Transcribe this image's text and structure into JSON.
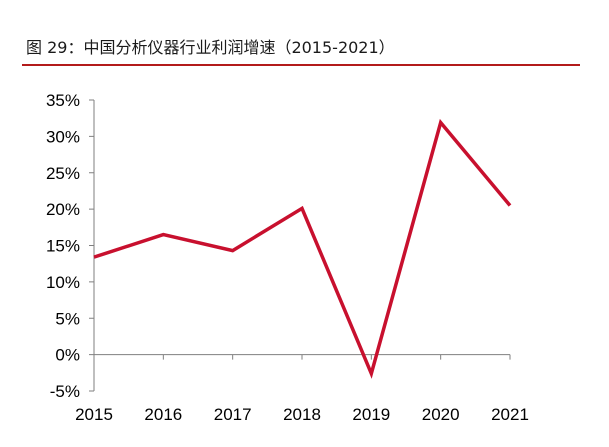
{
  "figure": {
    "caption": "图 29：中国分析仪器行业利润增速（2015-2021）",
    "rule_color": "#b31b1b"
  },
  "chart_data": {
    "type": "line",
    "title": "图 29：中国分析仪器行业利润增速（2015-2021）",
    "xlabel": "",
    "ylabel": "",
    "categories": [
      "2015",
      "2016",
      "2017",
      "2018",
      "2019",
      "2020",
      "2021"
    ],
    "series": [
      {
        "color": "#c8102e",
        "values": [
          13.4,
          16.5,
          14.3,
          20.1,
          -2.6,
          31.9,
          20.5
        ]
      }
    ],
    "yticks": [
      -5,
      0,
      5,
      10,
      15,
      20,
      25,
      30,
      35
    ],
    "ytick_labels": [
      "-5%",
      "0%",
      "5%",
      "10%",
      "15%",
      "20%",
      "25%",
      "30%",
      "35%"
    ],
    "ylim": [
      -5,
      35
    ],
    "grid": false,
    "legend": "none"
  }
}
